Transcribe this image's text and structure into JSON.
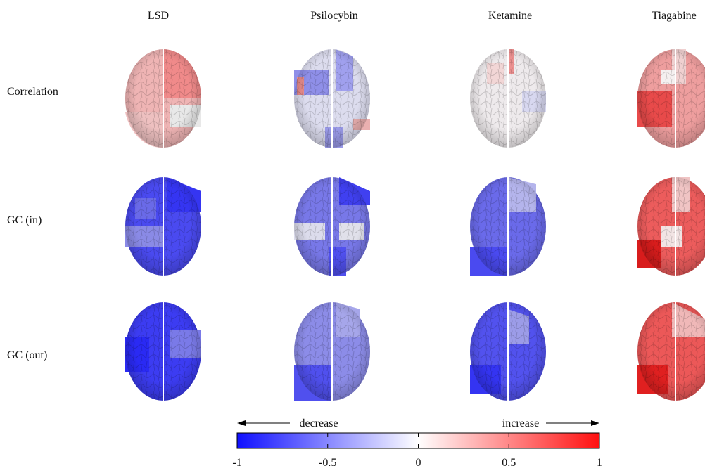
{
  "columns": [
    "LSD",
    "Psilocybin",
    "Ketamine",
    "Tiagabine"
  ],
  "rows": [
    "Correlation",
    "GC (in)",
    "GC (out)"
  ],
  "colorbar": {
    "lim": [
      -1,
      1
    ],
    "ticks": [
      -1,
      -0.5,
      0,
      0.5,
      1
    ],
    "left_label": "decrease",
    "right_label": "increase"
  }
}
